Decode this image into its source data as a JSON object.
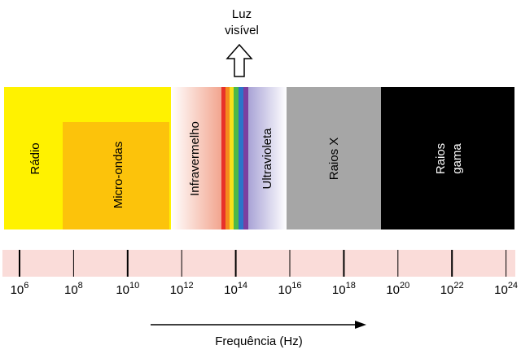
{
  "visible_light": {
    "line1": "Luz",
    "line2": "visível"
  },
  "bands": {
    "radio": "Rádio",
    "microwave": "Micro-ondas",
    "infrared": "Infravermelho",
    "ultraviolet": "Ultravioleta",
    "xray": "Raios X",
    "gamma": {
      "line1": "Raios",
      "line2": "gama"
    }
  },
  "scale": {
    "ticks": [
      {
        "base": "10",
        "exponent": "6"
      },
      {
        "base": "10",
        "exponent": "8"
      },
      {
        "base": "10",
        "exponent": "10"
      },
      {
        "base": "10",
        "exponent": "12"
      },
      {
        "base": "10",
        "exponent": "14"
      },
      {
        "base": "10",
        "exponent": "16"
      },
      {
        "base": "10",
        "exponent": "18"
      },
      {
        "base": "10",
        "exponent": "20"
      },
      {
        "base": "10",
        "exponent": "22"
      },
      {
        "base": "10",
        "exponent": "24"
      }
    ],
    "axis_label": "Frequência (Hz)"
  }
}
